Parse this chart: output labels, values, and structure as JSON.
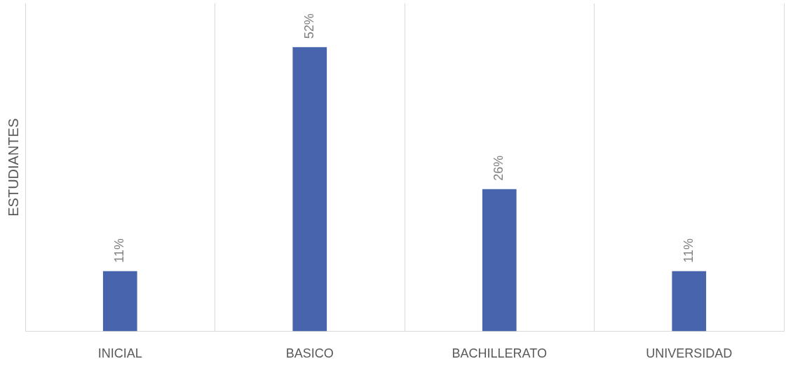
{
  "chart_data": {
    "type": "bar",
    "ylabel": "ESTUDIANTES",
    "categories": [
      "INICIAL",
      "BASICO",
      "BACHILLERATO",
      "UNIVERSIDAD"
    ],
    "values": [
      11,
      52,
      26,
      11
    ],
    "color": "#4764ad",
    "value_labels": [
      "11%",
      "52%",
      "26%",
      "11%"
    ],
    "ylim": [
      0,
      60
    ],
    "grid": "x",
    "tick_labels": "x",
    "legend": false
  }
}
